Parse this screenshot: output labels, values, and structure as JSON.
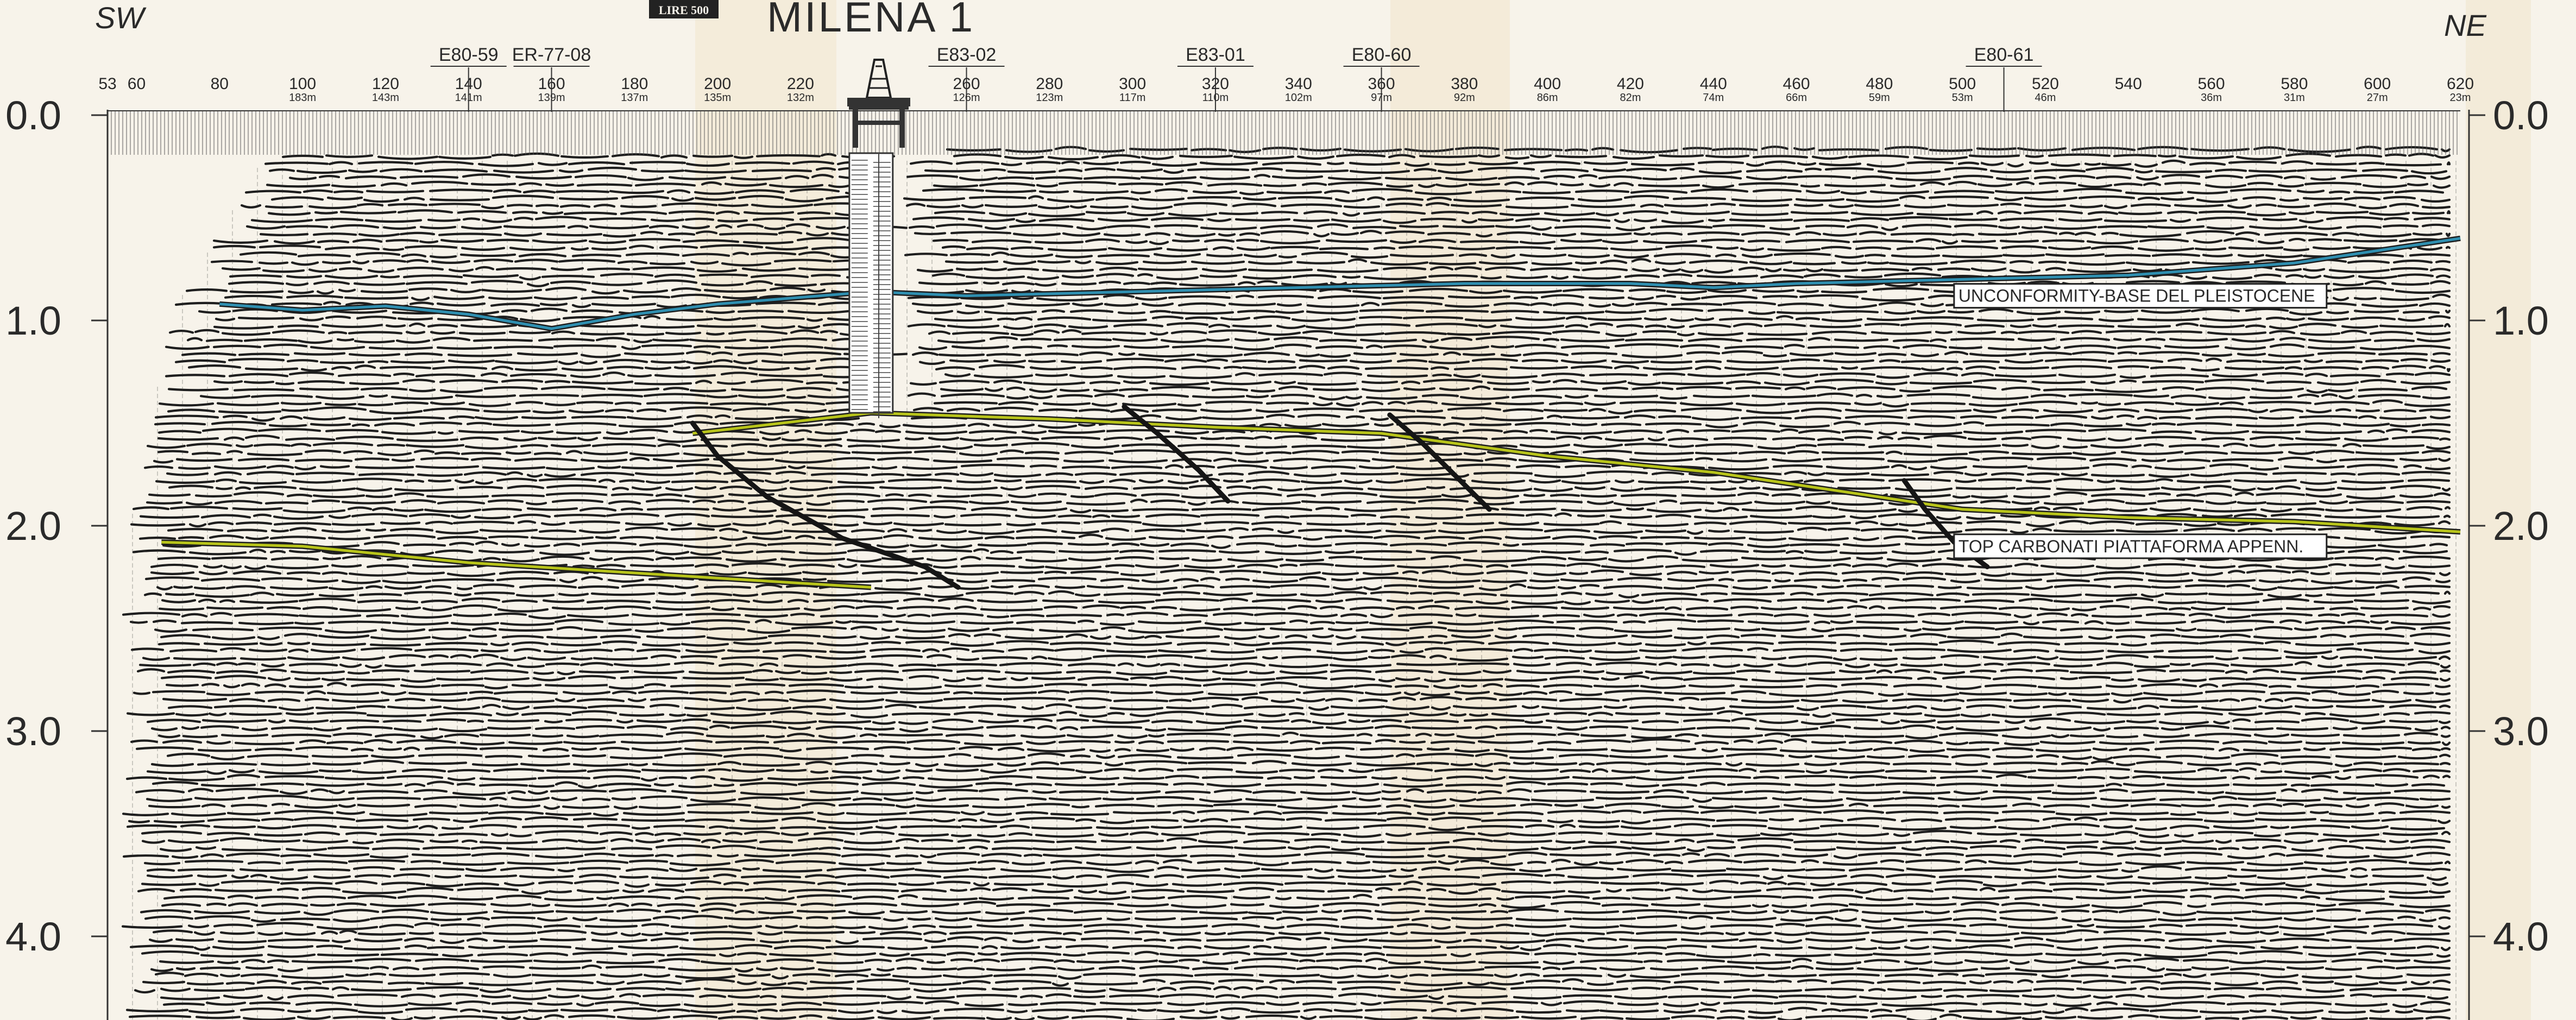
{
  "header": {
    "line_name": "MILENA 1",
    "stamp": "LIRE 500",
    "left_direction": "SW",
    "right_direction": "NE"
  },
  "crossing_lines": [
    {
      "name": "E80-59",
      "sp": 140
    },
    {
      "name": "ER-77-08",
      "sp": 160
    },
    {
      "name": "E83-02",
      "sp": 260
    },
    {
      "name": "E83-01",
      "sp": 320
    },
    {
      "name": "E80-60",
      "sp": 360
    },
    {
      "name": "E80-61",
      "sp": 510
    }
  ],
  "shotpoints": [
    {
      "sp": 53,
      "label": "53",
      "depth": ""
    },
    {
      "sp": 60,
      "label": "60",
      "depth": ""
    },
    {
      "sp": 80,
      "label": "80",
      "depth": ""
    },
    {
      "sp": 100,
      "label": "100",
      "depth": "183m"
    },
    {
      "sp": 120,
      "label": "120",
      "depth": "143m"
    },
    {
      "sp": 140,
      "label": "140",
      "depth": "141m"
    },
    {
      "sp": 160,
      "label": "160",
      "depth": "139m"
    },
    {
      "sp": 180,
      "label": "180",
      "depth": "137m"
    },
    {
      "sp": 200,
      "label": "200",
      "depth": "135m"
    },
    {
      "sp": 220,
      "label": "220",
      "depth": "132m"
    },
    {
      "sp": 260,
      "label": "260",
      "depth": "126m"
    },
    {
      "sp": 280,
      "label": "280",
      "depth": "123m"
    },
    {
      "sp": 300,
      "label": "300",
      "depth": "117m"
    },
    {
      "sp": 320,
      "label": "320",
      "depth": "110m"
    },
    {
      "sp": 340,
      "label": "340",
      "depth": "102m"
    },
    {
      "sp": 360,
      "label": "360",
      "depth": "97m"
    },
    {
      "sp": 380,
      "label": "380",
      "depth": "92m"
    },
    {
      "sp": 400,
      "label": "400",
      "depth": "86m"
    },
    {
      "sp": 420,
      "label": "420",
      "depth": "82m"
    },
    {
      "sp": 440,
      "label": "440",
      "depth": "74m"
    },
    {
      "sp": 460,
      "label": "460",
      "depth": "66m"
    },
    {
      "sp": 480,
      "label": "480",
      "depth": "59m"
    },
    {
      "sp": 500,
      "label": "500",
      "depth": "53m"
    },
    {
      "sp": 520,
      "label": "520",
      "depth": "46m"
    },
    {
      "sp": 540,
      "label": "540",
      "depth": ""
    },
    {
      "sp": 560,
      "label": "560",
      "depth": "36m"
    },
    {
      "sp": 580,
      "label": "580",
      "depth": "31m"
    },
    {
      "sp": 600,
      "label": "600",
      "depth": "27m"
    },
    {
      "sp": 620,
      "label": "620",
      "depth": "23m"
    }
  ],
  "time_axis": {
    "ticks": [
      {
        "value": 0,
        "label": "0.0"
      },
      {
        "value": 1,
        "label": "1.0"
      },
      {
        "value": 2,
        "label": "2.0"
      },
      {
        "value": 3,
        "label": "3.0"
      },
      {
        "value": 4,
        "label": "4.0"
      }
    ]
  },
  "well": {
    "name": "MILENA 1",
    "sp": 237,
    "td_time": 1.45
  },
  "horizons": [
    {
      "name": "UNCONFORMITY-BASE DEL PLEISTOCENE",
      "color": "#2f8fb0",
      "points": [
        [
          80,
          0.92
        ],
        [
          100,
          0.95
        ],
        [
          120,
          0.93
        ],
        [
          140,
          0.97
        ],
        [
          160,
          1.04
        ],
        [
          180,
          0.97
        ],
        [
          200,
          0.92
        ],
        [
          237,
          0.86
        ],
        [
          260,
          0.88
        ],
        [
          300,
          0.86
        ],
        [
          340,
          0.84
        ],
        [
          380,
          0.82
        ],
        [
          420,
          0.82
        ],
        [
          440,
          0.84
        ],
        [
          460,
          0.82
        ],
        [
          500,
          0.8
        ],
        [
          540,
          0.78
        ],
        [
          580,
          0.72
        ],
        [
          620,
          0.6
        ]
      ]
    },
    {
      "name": "TOP CARBONATI PIATTAFORMA APPENN.",
      "color": "#b8c41a",
      "points": [
        [
          66,
          2.08
        ],
        [
          100,
          2.1
        ],
        [
          140,
          2.18
        ],
        [
          180,
          2.23
        ],
        [
          220,
          2.28
        ],
        [
          237,
          2.3
        ]
      ]
    },
    {
      "name": "",
      "color": "#b8c41a",
      "points": [
        [
          194,
          1.55
        ],
        [
          237,
          1.45
        ],
        [
          280,
          1.48
        ],
        [
          320,
          1.52
        ],
        [
          360,
          1.55
        ],
        [
          400,
          1.66
        ],
        [
          440,
          1.74
        ],
        [
          470,
          1.83
        ],
        [
          500,
          1.92
        ],
        [
          540,
          1.96
        ],
        [
          580,
          1.98
        ],
        [
          620,
          2.03
        ]
      ]
    }
  ],
  "faults": [
    {
      "points": [
        [
          194,
          1.5
        ],
        [
          200,
          1.66
        ],
        [
          212,
          1.86
        ],
        [
          230,
          2.06
        ],
        [
          250,
          2.2
        ],
        [
          258,
          2.3
        ]
      ]
    },
    {
      "points": [
        [
          298,
          1.42
        ],
        [
          306,
          1.55
        ],
        [
          316,
          1.73
        ],
        [
          323,
          1.88
        ]
      ]
    },
    {
      "points": [
        [
          362,
          1.46
        ],
        [
          370,
          1.6
        ],
        [
          378,
          1.76
        ],
        [
          386,
          1.92
        ]
      ]
    },
    {
      "points": [
        [
          486,
          1.78
        ],
        [
          491,
          1.92
        ],
        [
          498,
          2.08
        ],
        [
          506,
          2.2
        ]
      ]
    }
  ],
  "horizon_labels": [
    {
      "text": "UNCONFORMITY-BASE DEL PLEISTOCENE",
      "sp": 498,
      "time": 0.88
    },
    {
      "text": "TOP CARBONATI PIATTAFORMA APPENN.",
      "sp": 498,
      "time": 2.1
    }
  ],
  "colors": {
    "paper": "#f7f3ea",
    "ink": "#1e1e1e"
  }
}
